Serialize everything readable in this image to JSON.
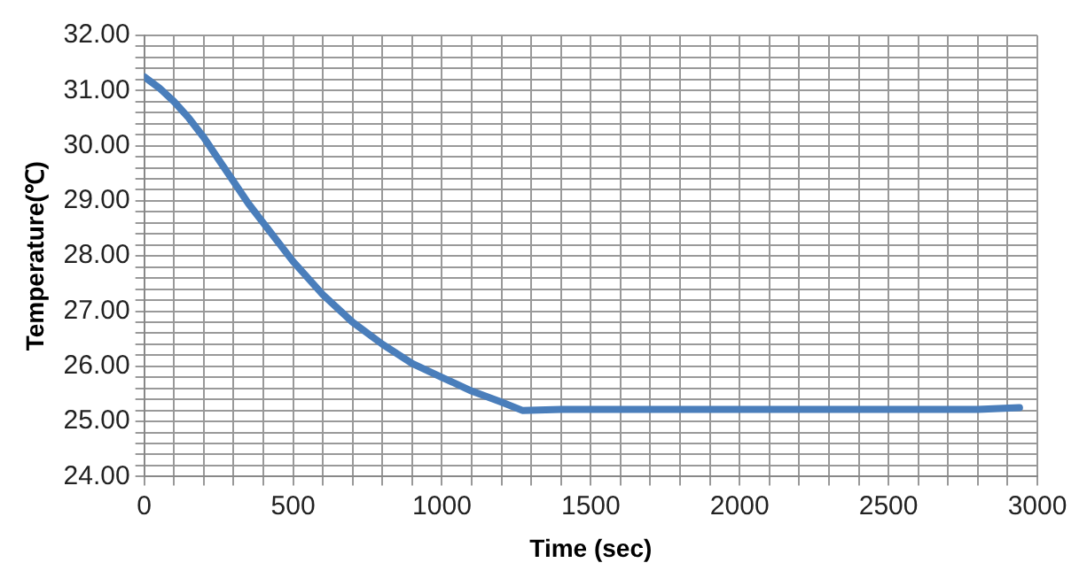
{
  "chart_data": {
    "type": "line",
    "xlabel": "Time (sec)",
    "ylabel": "Temperature(℃)",
    "x": [
      0,
      50,
      100,
      150,
      200,
      250,
      300,
      350,
      400,
      450,
      500,
      600,
      700,
      800,
      900,
      1000,
      1100,
      1200,
      1270,
      1400,
      1600,
      1800,
      2000,
      2200,
      2400,
      2600,
      2800,
      2940
    ],
    "series": [
      {
        "color": "#4a7ebb",
        "values": [
          31.25,
          31.05,
          30.8,
          30.5,
          30.15,
          29.75,
          29.35,
          28.95,
          28.6,
          28.25,
          27.9,
          27.3,
          26.8,
          26.4,
          26.05,
          25.8,
          25.55,
          25.35,
          25.2,
          25.22,
          25.22,
          25.22,
          25.22,
          25.22,
          25.22,
          25.22,
          25.22,
          25.25
        ]
      }
    ],
    "xlim": [
      0,
      3000
    ],
    "xticks": [
      0,
      {
        "value": 100,
        "label": null
      },
      {
        "value": 200,
        "label": null
      },
      {
        "value": 300,
        "label": null
      },
      {
        "value": 400,
        "label": null
      },
      500,
      {
        "value": 600,
        "label": null
      },
      {
        "value": 700,
        "label": null
      },
      {
        "value": 800,
        "label": null
      },
      {
        "value": 900,
        "label": null
      },
      1000,
      {
        "value": 1100,
        "label": null
      },
      {
        "value": 1200,
        "label": null
      },
      {
        "value": 1300,
        "label": null
      },
      {
        "value": 1400,
        "label": null
      },
      1500,
      {
        "value": 1600,
        "label": null
      },
      {
        "value": 1700,
        "label": null
      },
      {
        "value": 1800,
        "label": null
      },
      {
        "value": 1900,
        "label": null
      },
      2000,
      {
        "value": 2100,
        "label": null
      },
      {
        "value": 2200,
        "label": null
      },
      {
        "value": 2300,
        "label": null
      },
      {
        "value": 2400,
        "label": null
      },
      2500,
      {
        "value": 2600,
        "label": null
      },
      {
        "value": 2700,
        "label": null
      },
      {
        "value": 2800,
        "label": null
      },
      {
        "value": 2900,
        "label": null
      },
      3000
    ],
    "ylim": [
      24,
      32
    ],
    "yticks": [
      {
        "value": 24,
        "label": "24.00"
      },
      {
        "value": 24.2,
        "label": null
      },
      {
        "value": 24.4,
        "label": null
      },
      {
        "value": 24.6,
        "label": null
      },
      {
        "value": 24.8,
        "label": null
      },
      {
        "value": 25,
        "label": "25.00"
      },
      {
        "value": 25.2,
        "label": null
      },
      {
        "value": 25.4,
        "label": null
      },
      {
        "value": 25.6,
        "label": null
      },
      {
        "value": 25.8,
        "label": null
      },
      {
        "value": 26,
        "label": "26.00"
      },
      {
        "value": 26.2,
        "label": null
      },
      {
        "value": 26.4,
        "label": null
      },
      {
        "value": 26.6,
        "label": null
      },
      {
        "value": 26.8,
        "label": null
      },
      {
        "value": 27,
        "label": "27.00"
      },
      {
        "value": 27.2,
        "label": null
      },
      {
        "value": 27.4,
        "label": null
      },
      {
        "value": 27.6,
        "label": null
      },
      {
        "value": 27.8,
        "label": null
      },
      {
        "value": 28,
        "label": "28.00"
      },
      {
        "value": 28.2,
        "label": null
      },
      {
        "value": 28.4,
        "label": null
      },
      {
        "value": 28.6,
        "label": null
      },
      {
        "value": 28.8,
        "label": null
      },
      {
        "value": 29,
        "label": "29.00"
      },
      {
        "value": 29.2,
        "label": null
      },
      {
        "value": 29.4,
        "label": null
      },
      {
        "value": 29.6,
        "label": null
      },
      {
        "value": 29.8,
        "label": null
      },
      {
        "value": 30,
        "label": "30.00"
      },
      {
        "value": 30.2,
        "label": null
      },
      {
        "value": 30.4,
        "label": null
      },
      {
        "value": 30.6,
        "label": null
      },
      {
        "value": 30.8,
        "label": null
      },
      {
        "value": 31,
        "label": "31.00"
      },
      {
        "value": 31.2,
        "label": null
      },
      {
        "value": 31.4,
        "label": null
      },
      {
        "value": 31.6,
        "label": null
      },
      {
        "value": 31.8,
        "label": null
      },
      {
        "value": 32,
        "label": "32.00"
      }
    ],
    "grid": true,
    "legend": false,
    "marker": "none",
    "line_style": "solid"
  }
}
